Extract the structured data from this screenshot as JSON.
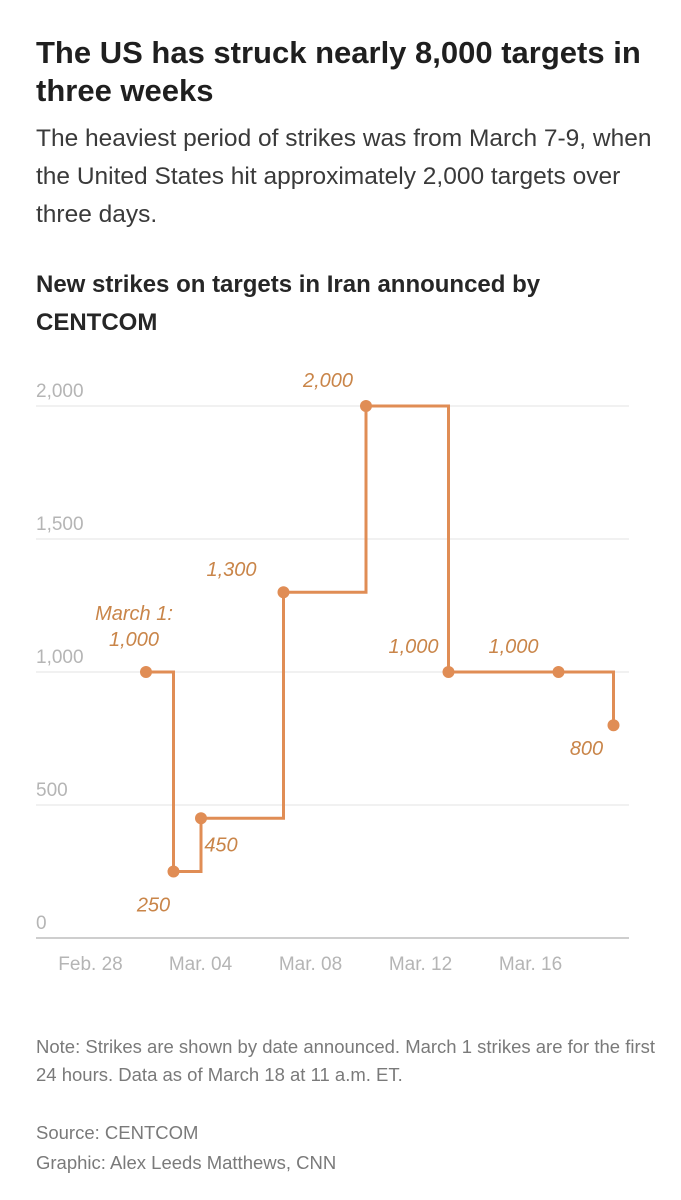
{
  "header": {
    "headline": "The US has struck nearly 8,000 targets in three weeks",
    "dek": "The heaviest period of strikes was from March 7-9, when the United States hit approximately 2,000 targets over three days."
  },
  "footer": {
    "note": "Note: Strikes are shown by date announced. March 1 strikes are for the first 24 hours. Data as of March 18 at 11 a.m. ET.",
    "source": "Source: CENTCOM",
    "credit": "Graphic: Alex Leeds Matthews, CNN"
  },
  "colors": {
    "series": "#e08d55",
    "label": "#c98549",
    "grid": "#e3e3e3",
    "axis": "#bdbdbd",
    "tick": "#b5b5b5"
  },
  "chart_data": {
    "type": "line",
    "step": "after",
    "title": "New strikes on targets in Iran announced by CENTCOM",
    "xlabel": "",
    "ylabel": "",
    "ylim": [
      0,
      2000
    ],
    "grid": true,
    "legend": "none",
    "y_ticks": [
      {
        "value": 0,
        "label": "0"
      },
      {
        "value": 500,
        "label": "500"
      },
      {
        "value": 1000,
        "label": "1,000"
      },
      {
        "value": 1500,
        "label": "1,500"
      },
      {
        "value": 2000,
        "label": "2,000"
      }
    ],
    "x_ticks": [
      {
        "date": "2026-02-28",
        "label": "Feb. 28"
      },
      {
        "date": "2026-03-04",
        "label": "Mar. 04"
      },
      {
        "date": "2026-03-08",
        "label": "Mar. 08"
      },
      {
        "date": "2026-03-12",
        "label": "Mar. 12"
      },
      {
        "date": "2026-03-16",
        "label": "Mar. 16"
      }
    ],
    "points": [
      {
        "date": "2026-03-01",
        "value": 1000,
        "label": "March 1:\n1,000"
      },
      {
        "date": "2026-03-02",
        "value": 250,
        "label": "250"
      },
      {
        "date": "2026-03-03",
        "value": 450,
        "label": "450"
      },
      {
        "date": "2026-03-06",
        "value": 1300,
        "label": "1,300"
      },
      {
        "date": "2026-03-09",
        "value": 2000,
        "label": "2,000"
      },
      {
        "date": "2026-03-12",
        "value": 1000,
        "label": "1,000"
      },
      {
        "date": "2026-03-16",
        "value": 1000,
        "label": "1,000"
      },
      {
        "date": "2026-03-18",
        "value": 800,
        "label": "800"
      }
    ]
  }
}
